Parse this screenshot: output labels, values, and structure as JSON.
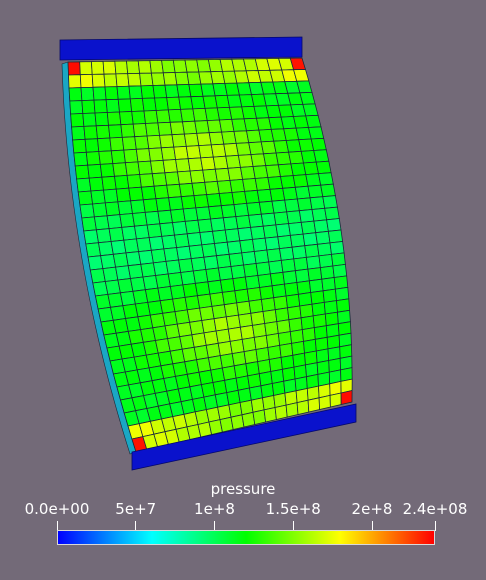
{
  "legend": {
    "title": "pressure",
    "ticks": [
      {
        "label": "0.0e+00",
        "value": 0
      },
      {
        "label": "5e+7",
        "value": 50000000
      },
      {
        "label": "1e+8",
        "value": 100000000
      },
      {
        "label": "1.5e+8",
        "value": 150000000
      },
      {
        "label": "2e+8",
        "value": 200000000
      },
      {
        "label": "2.4e+08",
        "value": 240000000
      }
    ],
    "range": [
      0,
      240000000
    ],
    "colormap": [
      "#0000ff",
      "#00ffff",
      "#00ff00",
      "#ffff00",
      "#ff0000"
    ]
  },
  "colors": {
    "background": "#736a78",
    "end_plates": "#0a12cc",
    "mesh_lines": "#1a2a3a"
  }
}
